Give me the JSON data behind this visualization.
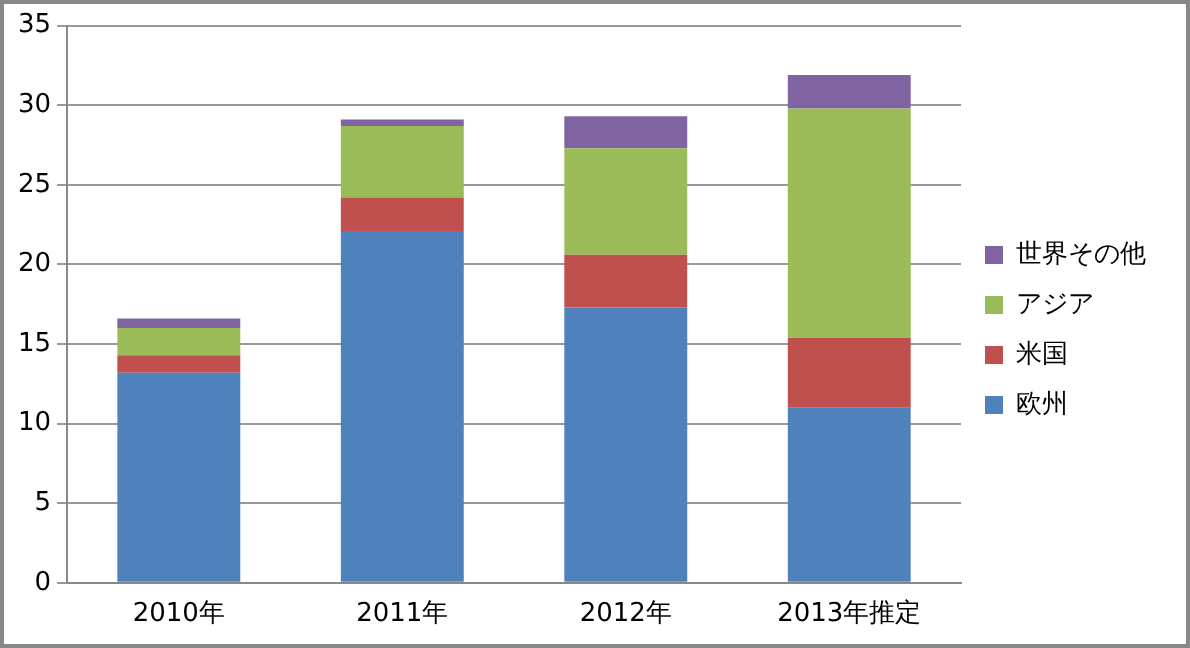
{
  "chart_data": {
    "type": "bar",
    "stacked": true,
    "categories": [
      "2010年",
      "2011年",
      "2012年",
      "2013年推定"
    ],
    "series": [
      {
        "name": "欧州",
        "color": "#4f81bd",
        "values": [
          13.2,
          22.1,
          17.3,
          11.0
        ]
      },
      {
        "name": "米国",
        "color": "#c0504d",
        "values": [
          1.1,
          2.1,
          3.3,
          4.4
        ]
      },
      {
        "name": "アジア",
        "color": "#9bbb59",
        "values": [
          1.7,
          4.5,
          6.7,
          14.4
        ]
      },
      {
        "name": "世界その他",
        "color": "#8064a2",
        "values": [
          0.6,
          0.4,
          2.0,
          2.1
        ]
      }
    ],
    "ylim": [
      0,
      35
    ],
    "yticks": [
      0,
      5,
      10,
      15,
      20,
      25,
      30,
      35
    ],
    "grid": "y",
    "legend": "right"
  }
}
